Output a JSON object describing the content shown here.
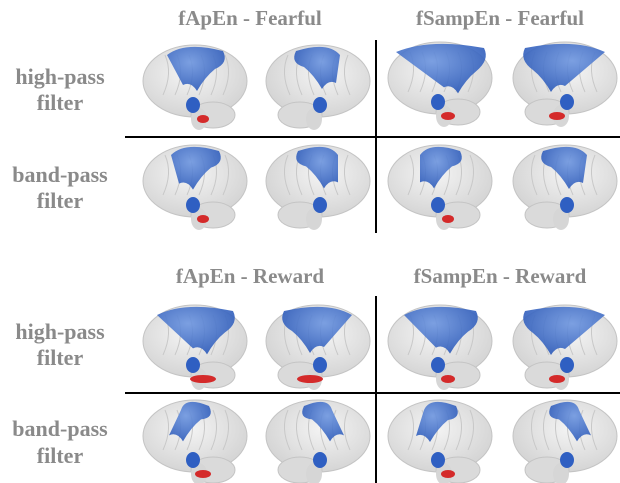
{
  "blocks": [
    {
      "columns": [
        "fApEn - Fearful",
        "fSampEn - Fearful"
      ],
      "rows": [
        [
          "high-pass",
          "filter"
        ],
        [
          "band-pass",
          "filter"
        ]
      ]
    },
    {
      "columns": [
        "fApEn - Reward",
        "fSampEn - Reward"
      ],
      "rows": [
        [
          "high-pass",
          "filter"
        ],
        [
          "band-pass",
          "filter"
        ]
      ]
    }
  ]
}
